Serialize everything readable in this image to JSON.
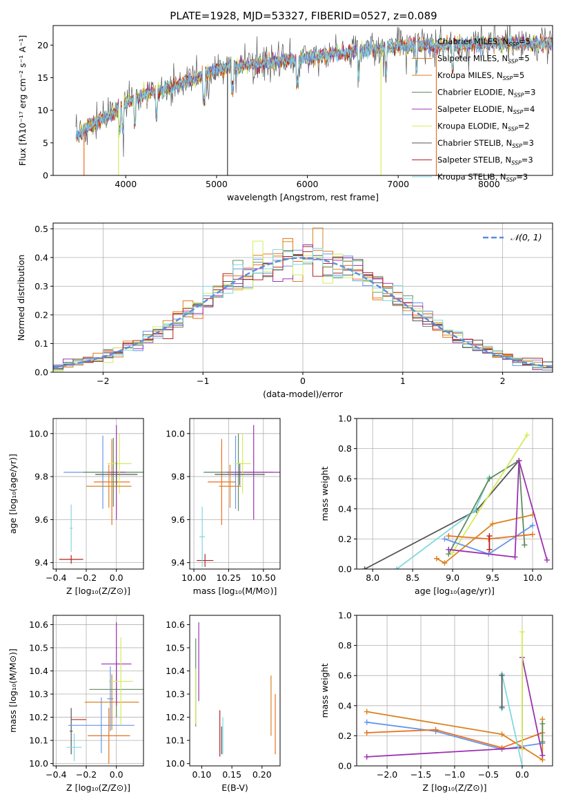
{
  "figure_title": "PLATE=1928, MJD=53327, FIBERID=0527, z=0.089",
  "models": [
    {
      "name": "Chabrier MILES",
      "n": "5",
      "color": "#6495ED"
    },
    {
      "name": "Salpeter MILES",
      "n": "5",
      "color": "#E8701C"
    },
    {
      "name": "Kroupa MILES",
      "n": "5",
      "color": "#D9821E"
    },
    {
      "name": "Chabrier ELODIE",
      "n": "3",
      "color": "#5E8C5E"
    },
    {
      "name": "Salpeter ELODIE",
      "n": "4",
      "color": "#9B30B0"
    },
    {
      "name": "Kroupa ELODIE",
      "n": "2",
      "color": "#D4EB5A"
    },
    {
      "name": "Chabrier STELIB",
      "n": "3",
      "color": "#555555"
    },
    {
      "name": "Salpeter STELIB",
      "n": "3",
      "color": "#B22222"
    },
    {
      "name": "Kroupa STELIB",
      "n": "3",
      "color": "#7FD8E0"
    }
  ],
  "chart_data": [
    {
      "id": "spectrum",
      "type": "line",
      "xlabel": "wavelength [Angstrom, rest frame]",
      "ylabel": "Flux [fλ10⁻¹⁷ erg cm⁻² s⁻¹ A⁻¹]",
      "xlim": [
        3200,
        8700
      ],
      "ylim": [
        0,
        23
      ],
      "xticks": [
        4000,
        5000,
        6000,
        7000,
        8000
      ],
      "yticks": [
        0,
        5,
        10,
        15,
        20
      ],
      "continuum": [
        [
          3450,
          6
        ],
        [
          3600,
          7.5
        ],
        [
          3800,
          9
        ],
        [
          4000,
          11
        ],
        [
          4200,
          12.5
        ],
        [
          4500,
          13.5
        ],
        [
          4800,
          15
        ],
        [
          5000,
          16.2
        ],
        [
          5500,
          17.2
        ],
        [
          6000,
          18
        ],
        [
          6500,
          19
        ],
        [
          7000,
          19.8
        ],
        [
          7500,
          20
        ],
        [
          8000,
          20.2
        ],
        [
          8500,
          20.3
        ],
        [
          8700,
          20.3
        ]
      ],
      "grid": false
    },
    {
      "id": "residuals",
      "type": "area",
      "xlabel": "(data-model)/error",
      "ylabel": "Normed distribution",
      "xlim": [
        -2.5,
        2.5
      ],
      "ylim": [
        0,
        0.52
      ],
      "xticks": [
        -2,
        -1,
        0,
        1,
        2
      ],
      "yticks": [
        0.0,
        0.1,
        0.2,
        0.3,
        0.4,
        0.5
      ],
      "legend": "𝒩(0, 1)",
      "grid": true
    },
    {
      "id": "age-vs-Z",
      "type": "scatter",
      "xlabel": "Z [log₁₀(Z/Z⊙)]",
      "ylabel": "age  [log₁₀(age/yr)]",
      "xlim": [
        -0.42,
        0.18
      ],
      "ylim": [
        9.37,
        10.07
      ],
      "xticks": [
        -0.4,
        -0.2,
        0.0
      ],
      "yticks": [
        9.4,
        9.6,
        9.8,
        10.0
      ],
      "points": [
        {
          "x": -0.09,
          "y": 9.82,
          "xerr": 0.26,
          "yerr": 0.17,
          "series": 0
        },
        {
          "x": -0.03,
          "y": 9.775,
          "xerr": 0.12,
          "yerr": 0.2,
          "series": 1
        },
        {
          "x": -0.02,
          "y": 9.82,
          "xerr": 0.2,
          "yerr": 0.16,
          "series": 3
        },
        {
          "x": 0.0,
          "y": 9.82,
          "xerr": 0.06,
          "yerr": 0.22,
          "series": 4
        },
        {
          "x": 0.02,
          "y": 9.86,
          "xerr": 0.08,
          "yerr": 0.14,
          "series": 5
        },
        {
          "x": 0.0,
          "y": 9.81,
          "xerr": 0.14,
          "yerr": 0.06,
          "series": 6
        },
        {
          "x": -0.05,
          "y": 9.755,
          "xerr": 0.15,
          "yerr": 0.1,
          "series": 2
        },
        {
          "x": -0.3,
          "y": 9.415,
          "xerr": 0.08,
          "yerr": 0.02,
          "series": 7
        },
        {
          "x": -0.3,
          "y": 9.56,
          "xerr": 0.01,
          "yerr": 0.11,
          "series": 8
        }
      ],
      "grid": true
    },
    {
      "id": "age-vs-mass",
      "type": "scatter",
      "xlabel": "mass [log₁₀(M/M⊙)]",
      "ylabel": "",
      "xlim": [
        9.97,
        10.62
      ],
      "ylim": [
        9.37,
        10.07
      ],
      "xticks": [
        10.0,
        10.25,
        10.5
      ],
      "yticks": [
        9.4,
        9.6,
        9.8,
        10.0
      ],
      "points": [
        {
          "x": 10.3,
          "y": 9.82,
          "xerr": 0.22,
          "yerr": 0.17,
          "series": 0
        },
        {
          "x": 10.2,
          "y": 9.775,
          "xerr": 0.1,
          "yerr": 0.2,
          "series": 1
        },
        {
          "x": 10.32,
          "y": 9.82,
          "xerr": 0.25,
          "yerr": 0.18,
          "series": 3
        },
        {
          "x": 10.43,
          "y": 9.82,
          "xerr": 0.19,
          "yerr": 0.22,
          "series": 4
        },
        {
          "x": 10.35,
          "y": 9.86,
          "xerr": 0.06,
          "yerr": 0.14,
          "series": 5
        },
        {
          "x": 10.33,
          "y": 9.81,
          "xerr": 0.18,
          "yerr": 0.05,
          "series": 6
        },
        {
          "x": 10.26,
          "y": 9.755,
          "xerr": 0.08,
          "yerr": 0.1,
          "series": 2
        },
        {
          "x": 10.08,
          "y": 9.41,
          "xerr": 0.06,
          "yerr": 0.03,
          "series": 7
        },
        {
          "x": 10.06,
          "y": 9.52,
          "xerr": 0.02,
          "yerr": 0.14,
          "series": 8
        }
      ],
      "grid": true
    },
    {
      "id": "weight-vs-age",
      "type": "line",
      "xlabel": "age  [log₁₀(age/yr)]",
      "ylabel": "mass weight",
      "xlim": [
        7.8,
        10.25
      ],
      "ylim": [
        0.0,
        1.0
      ],
      "xticks": [
        8.0,
        8.5,
        9.0,
        9.5,
        10.0
      ],
      "yticks": [
        0.0,
        0.2,
        0.4,
        0.6,
        0.8,
        1.0
      ],
      "grid": true
    },
    {
      "id": "mass-vs-Z",
      "type": "scatter",
      "xlabel": "Z [log₁₀(Z/Z⊙)]",
      "ylabel": "mass [log₁₀(M/M⊙)]",
      "xlim": [
        -0.42,
        0.18
      ],
      "ylim": [
        9.99,
        10.64
      ],
      "xticks": [
        -0.4,
        -0.2,
        0.0
      ],
      "yticks": [
        10.0,
        10.1,
        10.2,
        10.3,
        10.4,
        10.5,
        10.6
      ],
      "grid": true
    },
    {
      "id": "mass-vs-ebv",
      "type": "scatter",
      "xlabel": "E(B-V)",
      "ylabel": "",
      "xlim": [
        0.08,
        0.23
      ],
      "ylim": [
        9.99,
        10.64
      ],
      "xticks": [
        0.1,
        0.15,
        0.2
      ],
      "yticks": [
        10.0,
        10.1,
        10.2,
        10.3,
        10.4,
        10.5,
        10.6
      ],
      "grid": false
    },
    {
      "id": "weight-vs-Z",
      "type": "line",
      "xlabel": "Z [log₁₀(Z/Z⊙)]",
      "ylabel": "mass weight",
      "xlim": [
        -2.45,
        0.45
      ],
      "ylim": [
        0.0,
        1.0
      ],
      "xticks": [
        -2.0,
        -1.5,
        -1.0,
        -0.5,
        0.0
      ],
      "yticks": [
        0.0,
        0.2,
        0.4,
        0.6,
        0.8,
        1.0
      ],
      "grid": true
    }
  ]
}
